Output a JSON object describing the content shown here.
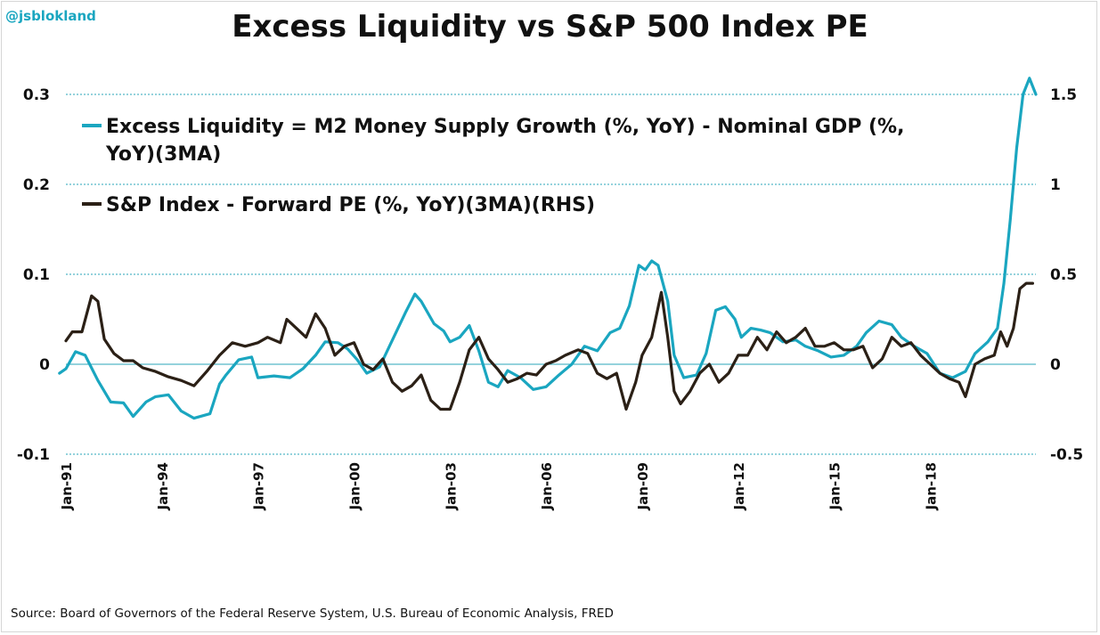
{
  "watermark": "@jsblokland",
  "source": "Source: Board of Governors of the Federal Reserve System, U.S. Bureau of Economic Analysis, FRED",
  "colors": {
    "excess_liquidity": "#1aa6c0",
    "sp_pe": "#2b2016",
    "grid": "#2aa6b8"
  },
  "chart_data": {
    "type": "line",
    "title": "Excess Liquidity vs S&P 500 Index PE",
    "x_tick_labels": [
      "Jan-91",
      "Jan-94",
      "Jan-97",
      "Jan-00",
      "Jan-03",
      "Jan-06",
      "Jan-09",
      "Jan-12",
      "Jan-15",
      "Jan-18"
    ],
    "y_left_ticks": [
      "0.3",
      "0.2",
      "0.1",
      "0",
      "-0.1"
    ],
    "y_right_ticks": [
      "1.5",
      "1",
      "0.5",
      "0",
      "-0.5"
    ],
    "ylim_left": [
      -0.1,
      0.3
    ],
    "ylim_right": [
      -0.5,
      1.5
    ],
    "xlim": [
      1991.0,
      2021.3
    ],
    "grid": "horizontal dashed",
    "legend_position": "top-left",
    "series": [
      {
        "name": "Excess Liquidity = M2 Money Supply Growth (%, YoY) - Nominal GDP (%, YoY)(3MA)",
        "name_lines": [
          "Excess Liquidity = M2 Money Supply Growth (%, YoY) - Nominal GDP (%,",
          "YoY)(3MA)"
        ],
        "axis": "left",
        "x": [
          1990.8,
          1991.0,
          1991.3,
          1991.6,
          1992.0,
          1992.4,
          1992.8,
          1993.1,
          1993.5,
          1993.8,
          1994.2,
          1994.6,
          1995.0,
          1995.5,
          1995.8,
          1996.0,
          1996.4,
          1996.8,
          1997.0,
          1997.5,
          1998.0,
          1998.4,
          1998.8,
          1999.1,
          1999.5,
          1999.8,
          2000.1,
          2000.4,
          2000.8,
          2001.2,
          2001.6,
          2001.9,
          2002.1,
          2002.5,
          2002.8,
          2003.0,
          2003.3,
          2003.6,
          2003.9,
          2004.2,
          2004.5,
          2004.8,
          2005.2,
          2005.6,
          2006.0,
          2006.4,
          2006.8,
          2007.2,
          2007.6,
          2008.0,
          2008.3,
          2008.6,
          2008.9,
          2009.1,
          2009.3,
          2009.5,
          2009.8,
          2010.0,
          2010.3,
          2010.7,
          2011.0,
          2011.3,
          2011.6,
          2011.9,
          2012.1,
          2012.4,
          2012.7,
          2013.0,
          2013.4,
          2013.8,
          2014.1,
          2014.5,
          2014.9,
          2015.3,
          2015.7,
          2016.0,
          2016.4,
          2016.8,
          2017.1,
          2017.5,
          2017.9,
          2018.3,
          2018.7,
          2019.1,
          2019.4,
          2019.8,
          2020.1,
          2020.3,
          2020.5,
          2020.7,
          2020.9,
          2021.1,
          2021.3
        ],
        "y": [
          -0.01,
          -0.005,
          0.014,
          0.01,
          -0.018,
          -0.042,
          -0.043,
          -0.058,
          -0.042,
          -0.036,
          -0.034,
          -0.052,
          -0.06,
          -0.055,
          -0.022,
          -0.012,
          0.005,
          0.008,
          -0.015,
          -0.013,
          -0.015,
          -0.005,
          0.01,
          0.025,
          0.024,
          0.017,
          0.005,
          -0.01,
          -0.003,
          0.027,
          0.057,
          0.078,
          0.07,
          0.045,
          0.037,
          0.025,
          0.03,
          0.043,
          0.015,
          -0.02,
          -0.025,
          -0.007,
          -0.015,
          -0.028,
          -0.025,
          -0.012,
          0.0,
          0.02,
          0.015,
          0.035,
          0.04,
          0.065,
          0.11,
          0.105,
          0.115,
          0.11,
          0.07,
          0.01,
          -0.015,
          -0.012,
          0.012,
          0.06,
          0.064,
          0.05,
          0.03,
          0.04,
          0.038,
          0.035,
          0.025,
          0.027,
          0.02,
          0.015,
          0.008,
          0.01,
          0.02,
          0.035,
          0.048,
          0.044,
          0.03,
          0.02,
          0.012,
          -0.01,
          -0.015,
          -0.008,
          0.012,
          0.025,
          0.04,
          0.09,
          0.16,
          0.24,
          0.3,
          0.318,
          0.3
        ]
      },
      {
        "name": "S&P Index - Forward PE (%, YoY)(3MA)(RHS)",
        "axis": "right",
        "x": [
          1991.0,
          1991.2,
          1991.5,
          1991.8,
          1992.0,
          1992.2,
          1992.5,
          1992.8,
          1993.1,
          1993.4,
          1993.8,
          1994.2,
          1994.6,
          1995.0,
          1995.4,
          1995.8,
          1996.2,
          1996.6,
          1997.0,
          1997.3,
          1997.7,
          1997.9,
          1998.2,
          1998.5,
          1998.8,
          1999.1,
          1999.4,
          1999.7,
          2000.0,
          2000.3,
          2000.6,
          2000.9,
          2001.2,
          2001.5,
          2001.8,
          2002.1,
          2002.4,
          2002.7,
          2003.0,
          2003.3,
          2003.6,
          2003.9,
          2004.2,
          2004.5,
          2004.8,
          2005.1,
          2005.4,
          2005.7,
          2006.0,
          2006.3,
          2006.6,
          2007.0,
          2007.3,
          2007.6,
          2007.9,
          2008.2,
          2008.5,
          2008.8,
          2009.0,
          2009.3,
          2009.6,
          2009.8,
          2010.0,
          2010.2,
          2010.5,
          2010.8,
          2011.1,
          2011.4,
          2011.7,
          2012.0,
          2012.3,
          2012.6,
          2012.9,
          2013.2,
          2013.5,
          2013.8,
          2014.1,
          2014.4,
          2014.7,
          2015.0,
          2015.3,
          2015.6,
          2015.9,
          2016.2,
          2016.5,
          2016.8,
          2017.1,
          2017.4,
          2017.7,
          2018.0,
          2018.3,
          2018.6,
          2018.9,
          2019.1,
          2019.4,
          2019.7,
          2020.0,
          2020.2,
          2020.4,
          2020.6,
          2020.8,
          2021.0,
          2021.2
        ],
        "y": [
          0.13,
          0.18,
          0.18,
          0.38,
          0.35,
          0.14,
          0.06,
          0.02,
          0.02,
          -0.02,
          -0.04,
          -0.07,
          -0.09,
          -0.12,
          -0.04,
          0.05,
          0.12,
          0.1,
          0.12,
          0.15,
          0.12,
          0.25,
          0.2,
          0.15,
          0.28,
          0.2,
          0.05,
          0.1,
          0.12,
          0.0,
          -0.03,
          0.03,
          -0.1,
          -0.15,
          -0.12,
          -0.06,
          -0.2,
          -0.25,
          -0.25,
          -0.1,
          0.08,
          0.15,
          0.03,
          -0.03,
          -0.1,
          -0.08,
          -0.05,
          -0.06,
          0.0,
          0.02,
          0.05,
          0.08,
          0.06,
          -0.05,
          -0.08,
          -0.05,
          -0.25,
          -0.1,
          0.05,
          0.15,
          0.4,
          0.15,
          -0.15,
          -0.22,
          -0.15,
          -0.05,
          0.0,
          -0.1,
          -0.05,
          0.05,
          0.05,
          0.15,
          0.08,
          0.18,
          0.12,
          0.15,
          0.2,
          0.1,
          0.1,
          0.12,
          0.08,
          0.08,
          0.1,
          -0.02,
          0.03,
          0.15,
          0.1,
          0.12,
          0.05,
          0.0,
          -0.05,
          -0.08,
          -0.1,
          -0.18,
          0.0,
          0.03,
          0.05,
          0.18,
          0.1,
          0.2,
          0.42,
          0.45,
          0.45
        ]
      }
    ]
  }
}
